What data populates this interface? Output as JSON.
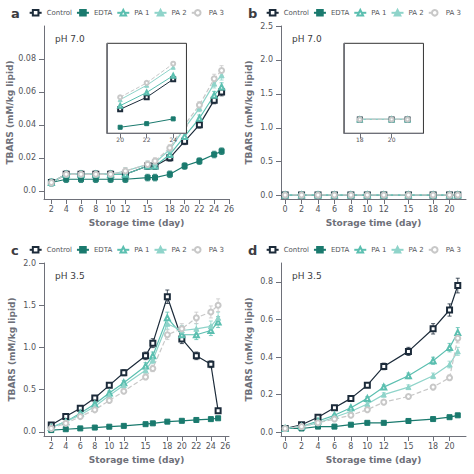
{
  "chart_data": [
    {
      "type": "line",
      "panel_label": "a",
      "annotation": "pH 7.0",
      "xlabel": "Storage time (day)",
      "ylabel": "TBARS (mM/kg lipid)",
      "x": [
        2,
        4,
        6,
        8,
        10,
        12,
        15,
        16,
        18,
        20,
        22,
        24,
        25
      ],
      "xlim": [
        1,
        26
      ],
      "ylim": [
        -0.005,
        0.1
      ],
      "xticks": [
        2,
        4,
        6,
        8,
        10,
        12,
        15,
        18,
        20,
        22,
        24,
        26
      ],
      "yticks": [
        {
          "value": 0.0,
          "label": "0.0"
        },
        0.02,
        0.04,
        0.06,
        0.08
      ],
      "grid": false,
      "legend": "upper right",
      "series": [
        {
          "name": "Control",
          "color": "#1c2b3a",
          "marker": "square-open",
          "line_style": "solid",
          "values": [
            0.005,
            0.01,
            0.01,
            0.01,
            0.01,
            0.01,
            0.015,
            0.015,
            0.02,
            0.03,
            0.04,
            0.055,
            0.06
          ],
          "errors": [
            0.002,
            0.002,
            0.002,
            0.002,
            0.002,
            0.002,
            0.002,
            0.002,
            0.002,
            0.002,
            0.002,
            0.0022,
            0.0024
          ]
        },
        {
          "name": "EDTA",
          "color": "#1a7a6e",
          "marker": "square",
          "line_style": "solid",
          "values": [
            0.005,
            0.007,
            0.007,
            0.007,
            0.007,
            0.007,
            0.008,
            0.008,
            0.01,
            0.015,
            0.018,
            0.022,
            0.024
          ],
          "errors": [
            0.002,
            0.002,
            0.002,
            0.002,
            0.002,
            0.002,
            0.002,
            0.002,
            0.002,
            0.002,
            0.002,
            0.002,
            0.002
          ]
        },
        {
          "name": "PA 1",
          "color": "#5bbfb0",
          "marker": "triangle-open",
          "line_style": "solid",
          "values": [
            0.005,
            0.01,
            0.01,
            0.01,
            0.01,
            0.01,
            0.015,
            0.015,
            0.022,
            0.033,
            0.044,
            0.058,
            0.063
          ],
          "errors": [
            0.002,
            0.002,
            0.002,
            0.002,
            0.002,
            0.002,
            0.002,
            0.002,
            0.002,
            0.002,
            0.002,
            0.00232,
            0.00252
          ]
        },
        {
          "name": "PA 2",
          "color": "#8fd4ca",
          "marker": "triangle",
          "line_style": "solid",
          "values": [
            0.005,
            0.01,
            0.01,
            0.01,
            0.01,
            0.012,
            0.016,
            0.017,
            0.025,
            0.038,
            0.05,
            0.065,
            0.07
          ],
          "errors": [
            0.002,
            0.002,
            0.002,
            0.002,
            0.002,
            0.002,
            0.002,
            0.002,
            0.002,
            0.002,
            0.002,
            0.0026,
            0.0028
          ]
        },
        {
          "name": "PA 3",
          "color": "#c8c8c8",
          "marker": "circle-open",
          "line_style": "dashed",
          "values": [
            0.005,
            0.01,
            0.01,
            0.01,
            0.01,
            0.012,
            0.016,
            0.018,
            0.026,
            0.04,
            0.052,
            0.068,
            0.073
          ],
          "errors": [
            0.002,
            0.002,
            0.002,
            0.002,
            0.002,
            0.002,
            0.002,
            0.002,
            0.002,
            0.002,
            0.00208,
            0.00272,
            0.00292
          ]
        }
      ],
      "inset": {
        "type": "line",
        "x": [
          20,
          22,
          24
        ],
        "xlim": [
          19,
          25
        ],
        "ylim": [
          0.01,
          0.085
        ],
        "xticks": [
          20,
          22,
          24
        ],
        "tick_labels": "x",
        "grid": false,
        "series": [
          {
            "name": "Control",
            "color": "#1c2b3a",
            "marker": "square-open",
            "line_style": "solid",
            "values": [
              0.03,
              0.04,
              0.055
            ]
          },
          {
            "name": "EDTA",
            "color": "#1a7a6e",
            "marker": "square",
            "line_style": "solid",
            "values": [
              0.015,
              0.018,
              0.022
            ]
          },
          {
            "name": "PA 1",
            "color": "#5bbfb0",
            "marker": "triangle-open",
            "line_style": "solid",
            "values": [
              0.033,
              0.044,
              0.058
            ]
          },
          {
            "name": "PA 2",
            "color": "#8fd4ca",
            "marker": "triangle",
            "line_style": "solid",
            "values": [
              0.038,
              0.05,
              0.065
            ]
          },
          {
            "name": "PA 3",
            "color": "#c8c8c8",
            "marker": "circle-open",
            "line_style": "dashed",
            "values": [
              0.04,
              0.052,
              0.068
            ]
          }
        ]
      }
    },
    {
      "type": "line",
      "panel_label": "b",
      "annotation": "pH 7.0",
      "xlabel": "Storage time (day)",
      "ylabel": "TBARS (mM/kg lipid)",
      "x": [
        0,
        2,
        4,
        6,
        8,
        10,
        12,
        15,
        18,
        20,
        21
      ],
      "xlim": [
        -0.5,
        22
      ],
      "ylim": [
        -0.05,
        2.5
      ],
      "xticks": [
        0,
        2,
        4,
        6,
        8,
        10,
        12,
        15,
        18,
        20
      ],
      "yticks": [
        {
          "value": 0.0,
          "label": "0.0"
        },
        0.5,
        {
          "value": 1.0,
          "label": "1.0"
        },
        1.5,
        {
          "value": 2.0,
          "label": "2.0"
        },
        2.5
      ],
      "grid": false,
      "legend": "upper right",
      "series": [
        {
          "name": "Control",
          "color": "#1c2b3a",
          "marker": "square-open",
          "line_style": "solid",
          "values": [
            0.01,
            0.01,
            0.01,
            0.01,
            0.01,
            0.01,
            0.01,
            0.01,
            0.01,
            0.01,
            0.01
          ],
          "errors": [
            0.002,
            0.002,
            0.002,
            0.002,
            0.002,
            0.002,
            0.002,
            0.002,
            0.002,
            0.002,
            0.002
          ]
        },
        {
          "name": "EDTA",
          "color": "#1a7a6e",
          "marker": "square",
          "line_style": "solid",
          "values": [
            0.01,
            0.01,
            0.01,
            0.01,
            0.01,
            0.01,
            0.01,
            0.01,
            0.01,
            0.01,
            0.01
          ],
          "errors": [
            0.002,
            0.002,
            0.002,
            0.002,
            0.002,
            0.002,
            0.002,
            0.002,
            0.002,
            0.002,
            0.002
          ]
        },
        {
          "name": "PA 1",
          "color": "#5bbfb0",
          "marker": "triangle-open",
          "line_style": "solid",
          "values": [
            0.01,
            0.01,
            0.01,
            0.01,
            0.01,
            0.01,
            0.01,
            0.01,
            0.01,
            0.01,
            0.01
          ],
          "errors": [
            0.002,
            0.002,
            0.002,
            0.002,
            0.002,
            0.002,
            0.002,
            0.002,
            0.002,
            0.002,
            0.002
          ]
        },
        {
          "name": "PA 2",
          "color": "#8fd4ca",
          "marker": "triangle",
          "line_style": "solid",
          "values": [
            0.01,
            0.01,
            0.01,
            0.01,
            0.01,
            0.01,
            0.01,
            0.01,
            0.01,
            0.01,
            0.01
          ],
          "errors": [
            0.002,
            0.002,
            0.002,
            0.002,
            0.002,
            0.002,
            0.002,
            0.002,
            0.002,
            0.002,
            0.002
          ]
        },
        {
          "name": "PA 3",
          "color": "#c8c8c8",
          "marker": "circle-open",
          "line_style": "dashed",
          "values": [
            0.01,
            0.01,
            0.01,
            0.01,
            0.01,
            0.01,
            0.01,
            0.01,
            0.01,
            0.01,
            0.01
          ],
          "errors": [
            0.002,
            0.002,
            0.002,
            0.002,
            0.002,
            0.002,
            0.002,
            0.002,
            0.002,
            0.002,
            0.002
          ]
        }
      ],
      "inset": {
        "type": "line",
        "x": [
          18,
          20,
          21
        ],
        "xlim": [
          17,
          22
        ],
        "ylim": [
          -0.01,
          0.12
        ],
        "xticks": [
          18,
          20
        ],
        "tick_labels": "x",
        "grid": false,
        "series": [
          {
            "name": "Control",
            "color": "#1c2b3a",
            "marker": "square-open",
            "line_style": "solid",
            "values": [
              0.01,
              0.01,
              0.01
            ]
          },
          {
            "name": "EDTA",
            "color": "#1a7a6e",
            "marker": "square",
            "line_style": "solid",
            "values": [
              0.01,
              0.01,
              0.01
            ]
          },
          {
            "name": "PA 1",
            "color": "#5bbfb0",
            "marker": "triangle-open",
            "line_style": "solid",
            "values": [
              0.01,
              0.01,
              0.01
            ]
          },
          {
            "name": "PA 2",
            "color": "#8fd4ca",
            "marker": "triangle",
            "line_style": "solid",
            "values": [
              0.01,
              0.01,
              0.01
            ]
          },
          {
            "name": "PA 3",
            "color": "#c8c8c8",
            "marker": "circle-open",
            "line_style": "dashed",
            "values": [
              0.01,
              0.01,
              0.01
            ]
          }
        ]
      }
    },
    {
      "type": "line",
      "panel_label": "c",
      "annotation": "pH 3.5",
      "xlabel": "Storage time (day)",
      "ylabel": "TBARS (mM/kg lipid)",
      "x": [
        2,
        4,
        6,
        8,
        10,
        12,
        15,
        16,
        18,
        20,
        22,
        24,
        25
      ],
      "xlim": [
        1,
        26.5
      ],
      "ylim": [
        -0.05,
        2.0
      ],
      "xticks": [
        2,
        4,
        6,
        8,
        10,
        12,
        15,
        18,
        20,
        22,
        24,
        26
      ],
      "yticks": [
        {
          "value": 0.0,
          "label": "0.0"
        },
        0.5,
        {
          "value": 1.0,
          "label": "1.0"
        },
        1.5,
        {
          "value": 2.0,
          "label": "2.0"
        }
      ],
      "grid": false,
      "legend": "upper right",
      "series": [
        {
          "name": "Control",
          "color": "#1c2b3a",
          "marker": "square-open",
          "line_style": "solid",
          "values": [
            0.08,
            0.18,
            0.28,
            0.4,
            0.55,
            0.7,
            0.9,
            1.05,
            1.6,
            1.1,
            0.9,
            0.8,
            0.25
          ],
          "errors": [
            0.004,
            0.009,
            0.014,
            0.02,
            0.0275,
            0.035,
            0.045,
            0.0525,
            0.08,
            0.055,
            0.045,
            0.04,
            0.0125
          ]
        },
        {
          "name": "EDTA",
          "color": "#1a7a6e",
          "marker": "square",
          "line_style": "solid",
          "values": [
            0.02,
            0.03,
            0.04,
            0.05,
            0.06,
            0.07,
            0.09,
            0.1,
            0.12,
            0.13,
            0.14,
            0.15,
            0.16
          ],
          "errors": [
            0.002,
            0.002,
            0.002,
            0.0025,
            0.003,
            0.0035,
            0.0045,
            0.005,
            0.006,
            0.0065,
            0.007,
            0.0075,
            0.008
          ]
        },
        {
          "name": "PA 1",
          "color": "#5bbfb0",
          "marker": "triangle-open",
          "line_style": "solid",
          "values": [
            0.05,
            0.12,
            0.22,
            0.33,
            0.46,
            0.58,
            0.78,
            0.9,
            1.35,
            1.15,
            1.15,
            1.2,
            1.3
          ],
          "errors": [
            0.0025,
            0.006,
            0.011,
            0.0165,
            0.023,
            0.029,
            0.039,
            0.045,
            0.0675,
            0.0575,
            0.0575,
            0.06,
            0.065
          ]
        },
        {
          "name": "PA 2",
          "color": "#8fd4ca",
          "marker": "triangle",
          "line_style": "solid",
          "values": [
            0.05,
            0.12,
            0.2,
            0.3,
            0.43,
            0.55,
            0.73,
            0.85,
            1.28,
            1.2,
            1.22,
            1.25,
            1.35
          ],
          "errors": [
            0.0025,
            0.006,
            0.01,
            0.015,
            0.0215,
            0.0275,
            0.0365,
            0.0425,
            0.064,
            0.06,
            0.061,
            0.0625,
            0.0675
          ]
        },
        {
          "name": "PA 3",
          "color": "#c8c8c8",
          "marker": "circle-open",
          "line_style": "dashed",
          "values": [
            0.04,
            0.1,
            0.18,
            0.26,
            0.37,
            0.48,
            0.65,
            0.75,
            1.15,
            1.22,
            1.35,
            1.42,
            1.5
          ],
          "errors": [
            0.002,
            0.005,
            0.009,
            0.013,
            0.0185,
            0.024,
            0.0325,
            0.0375,
            0.0575,
            0.061,
            0.0675,
            0.071,
            0.075
          ]
        }
      ]
    },
    {
      "type": "line",
      "panel_label": "d",
      "annotation": "pH 3.5",
      "xlabel": "Storage time (day)",
      "ylabel": "TBARS (mM/kg lipid)",
      "x": [
        0,
        2,
        4,
        6,
        8,
        10,
        12,
        15,
        18,
        20,
        21
      ],
      "xlim": [
        -0.5,
        22
      ],
      "ylim": [
        -0.02,
        0.9
      ],
      "xticks": [
        0,
        2,
        4,
        6,
        8,
        10,
        12,
        15,
        18,
        20
      ],
      "yticks": [
        {
          "value": 0.0,
          "label": "0.0"
        },
        0.2,
        0.4,
        0.6,
        0.8
      ],
      "grid": false,
      "legend": "upper right",
      "series": [
        {
          "name": "Control",
          "color": "#1c2b3a",
          "marker": "square-open",
          "line_style": "solid",
          "values": [
            0.02,
            0.04,
            0.08,
            0.13,
            0.18,
            0.25,
            0.35,
            0.43,
            0.55,
            0.65,
            0.78
          ],
          "errors": [
            0.002,
            0.002,
            0.004,
            0.0065,
            0.009,
            0.0125,
            0.0175,
            0.0215,
            0.0275,
            0.0325,
            0.039
          ]
        },
        {
          "name": "EDTA",
          "color": "#1a7a6e",
          "marker": "square",
          "line_style": "solid",
          "values": [
            0.02,
            0.02,
            0.03,
            0.03,
            0.04,
            0.05,
            0.05,
            0.06,
            0.07,
            0.08,
            0.09
          ],
          "errors": [
            0.002,
            0.002,
            0.002,
            0.002,
            0.002,
            0.0025,
            0.0025,
            0.003,
            0.0035,
            0.004,
            0.0045
          ]
        },
        {
          "name": "PA 1",
          "color": "#5bbfb0",
          "marker": "triangle-open",
          "line_style": "solid",
          "values": [
            0.02,
            0.03,
            0.06,
            0.09,
            0.13,
            0.18,
            0.24,
            0.3,
            0.38,
            0.45,
            0.53
          ],
          "errors": [
            0.002,
            0.002,
            0.003,
            0.0045,
            0.0065,
            0.009,
            0.012,
            0.015,
            0.019,
            0.0225,
            0.0265
          ]
        },
        {
          "name": "PA 2",
          "color": "#8fd4ca",
          "marker": "triangle",
          "line_style": "solid",
          "values": [
            0.02,
            0.03,
            0.05,
            0.08,
            0.11,
            0.15,
            0.2,
            0.24,
            0.3,
            0.36,
            0.43
          ],
          "errors": [
            0.002,
            0.002,
            0.0025,
            0.004,
            0.0055,
            0.0075,
            0.01,
            0.012,
            0.015,
            0.018,
            0.0215
          ]
        },
        {
          "name": "PA 3",
          "color": "#c8c8c8",
          "marker": "circle-open",
          "line_style": "dashed",
          "values": [
            0.02,
            0.03,
            0.05,
            0.07,
            0.09,
            0.12,
            0.16,
            0.19,
            0.24,
            0.29,
            0.5
          ],
          "errors": [
            0.002,
            0.002,
            0.0025,
            0.0035,
            0.0045,
            0.006,
            0.008,
            0.0095,
            0.012,
            0.0145,
            0.025
          ]
        }
      ]
    }
  ]
}
